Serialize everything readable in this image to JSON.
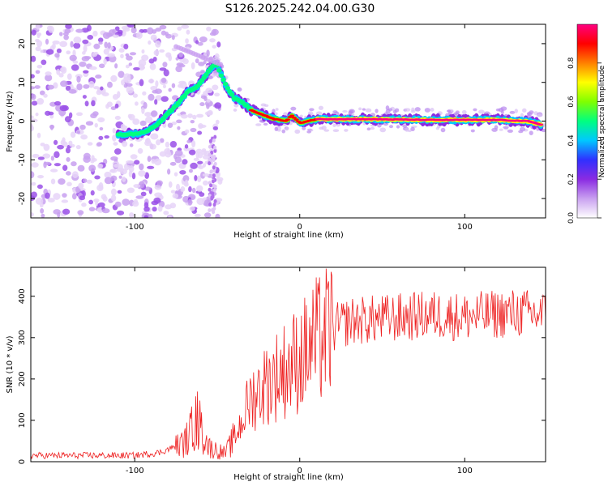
{
  "title": "S126.2025.242.04.00.G30",
  "chart_data": [
    {
      "type": "heatmap",
      "name": "spectrogram",
      "xlabel": "Height of straight line (km)",
      "ylabel": "Frequency (Hz)",
      "xlim": [
        -163,
        149
      ],
      "ylim": [
        -25,
        25
      ],
      "xticks": [
        -100,
        0,
        100
      ],
      "yticks": [
        -20,
        -10,
        0,
        10,
        20
      ],
      "ridge": [
        {
          "x": -105,
          "y": -3.5
        },
        {
          "x": -95,
          "y": -3.0
        },
        {
          "x": -88,
          "y": -1.5
        },
        {
          "x": -82,
          "y": 1.0
        },
        {
          "x": -75,
          "y": 4.0
        },
        {
          "x": -68,
          "y": 7.5
        },
        {
          "x": -62,
          "y": 9.0
        },
        {
          "x": -55,
          "y": 13.0
        },
        {
          "x": -51,
          "y": 15.0
        },
        {
          "x": -45,
          "y": 9.5
        },
        {
          "x": -40,
          "y": 6.0
        },
        {
          "x": -35,
          "y": 5.0
        },
        {
          "x": -30,
          "y": 3.0
        },
        {
          "x": -25,
          "y": 2.0
        },
        {
          "x": -15,
          "y": 0.5
        },
        {
          "x": -8,
          "y": 0.0
        },
        {
          "x": -5,
          "y": 1.5
        },
        {
          "x": 0,
          "y": -0.5
        },
        {
          "x": 10,
          "y": 0.5
        },
        {
          "x": 40,
          "y": 0.5
        },
        {
          "x": 80,
          "y": 0.3
        },
        {
          "x": 120,
          "y": 0.3
        },
        {
          "x": 138,
          "y": 0.0
        },
        {
          "x": 147,
          "y": -1.0
        }
      ],
      "colorbar": {
        "label": "Normalized spectral amplitude",
        "range": [
          0,
          1
        ],
        "ticks": [
          0.0,
          0.2,
          0.4,
          0.6,
          0.8
        ],
        "colors": [
          "#ffffff",
          "#c9a0f0",
          "#8a2be2",
          "#3030ff",
          "#00c8ff",
          "#00ff80",
          "#80ff00",
          "#ffff00",
          "#ff8000",
          "#ff0000",
          "#ff0080"
        ]
      }
    },
    {
      "type": "line",
      "name": "snr",
      "xlabel": "Height of straight line (km)",
      "ylabel": "SNR (10 * v/v)",
      "xlim": [
        -163,
        149
      ],
      "ylim": [
        0,
        470
      ],
      "xticks": [
        -100,
        0,
        100
      ],
      "yticks": [
        0,
        100,
        200,
        300,
        400
      ],
      "color": "#ee2020",
      "envelope": [
        {
          "x": -163,
          "y": 15
        },
        {
          "x": -100,
          "y": 15
        },
        {
          "x": -85,
          "y": 22
        },
        {
          "x": -70,
          "y": 45
        },
        {
          "x": -62,
          "y": 100
        },
        {
          "x": -55,
          "y": 35
        },
        {
          "x": -45,
          "y": 20
        },
        {
          "x": -38,
          "y": 70
        },
        {
          "x": -30,
          "y": 150
        },
        {
          "x": -20,
          "y": 190
        },
        {
          "x": -10,
          "y": 220
        },
        {
          "x": 0,
          "y": 250
        },
        {
          "x": 10,
          "y": 290
        },
        {
          "x": 20,
          "y": 320
        },
        {
          "x": 30,
          "y": 340
        },
        {
          "x": 50,
          "y": 345
        },
        {
          "x": 80,
          "y": 355
        },
        {
          "x": 100,
          "y": 350
        },
        {
          "x": 130,
          "y": 360
        },
        {
          "x": 149,
          "y": 355
        }
      ]
    }
  ]
}
